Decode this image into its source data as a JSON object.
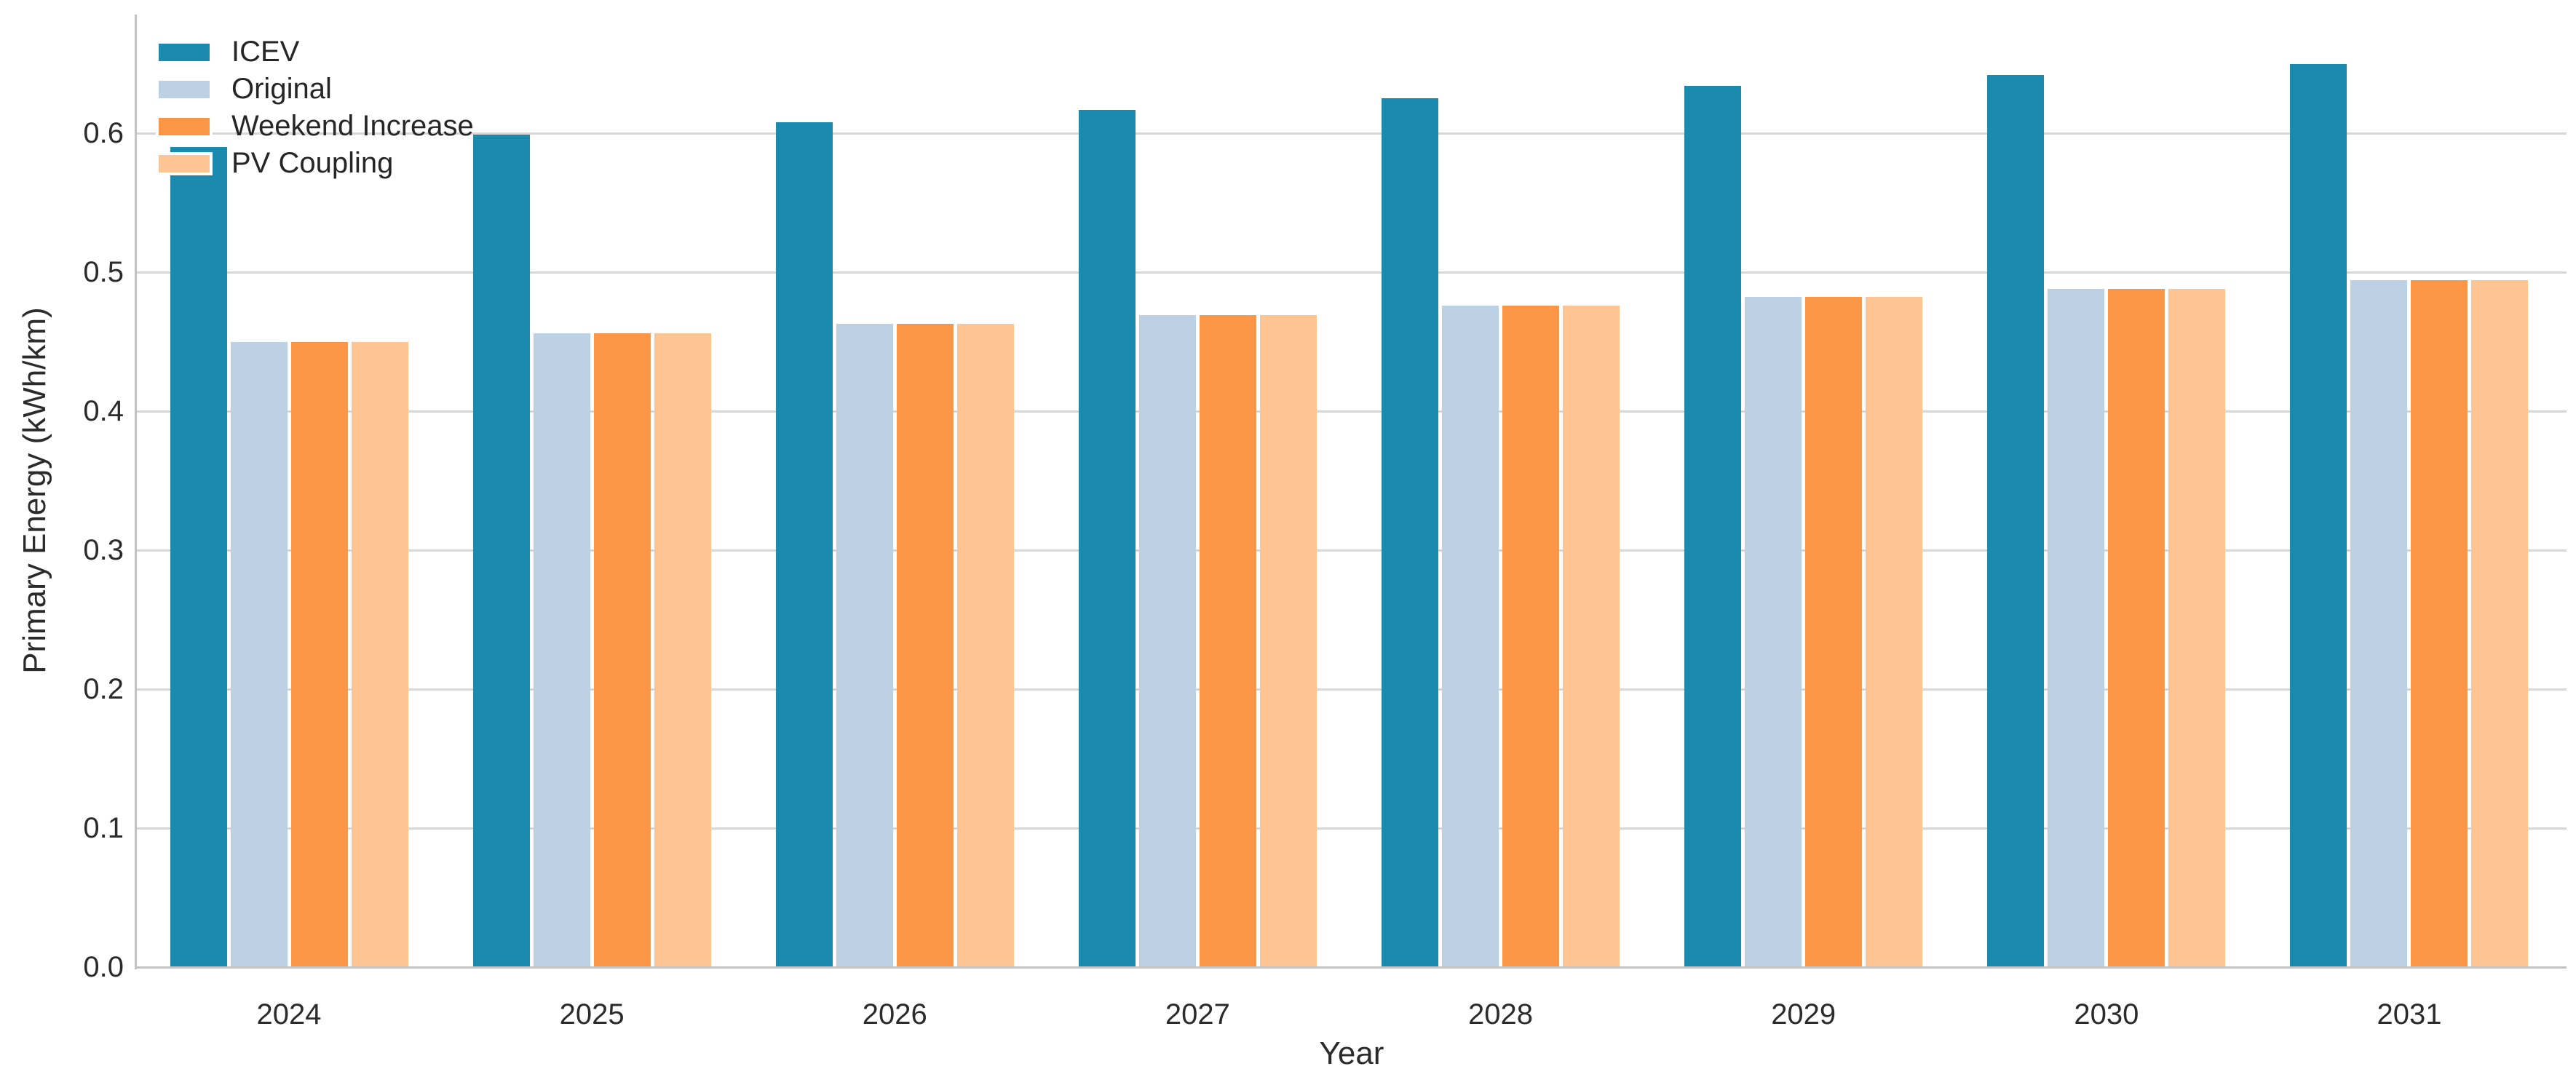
{
  "chart_data": {
    "type": "bar",
    "title": "",
    "categories": [
      "2024",
      "2025",
      "2026",
      "2027",
      "2028",
      "2029",
      "2030",
      "2031"
    ],
    "series": [
      {
        "name": "ICEV",
        "color": "#1a8aae",
        "values": [
          0.59,
          0.599,
          0.608,
          0.617,
          0.625,
          0.634,
          0.642,
          0.65
        ]
      },
      {
        "name": "Original",
        "color": "#bdd1e5",
        "values": [
          0.45,
          0.456,
          0.463,
          0.469,
          0.476,
          0.482,
          0.488,
          0.494
        ]
      },
      {
        "name": "Weekend Increase",
        "color": "#fa9646",
        "values": [
          0.45,
          0.456,
          0.463,
          0.469,
          0.476,
          0.482,
          0.488,
          0.494
        ]
      },
      {
        "name": "PV Coupling",
        "color": "#fdc594",
        "values": [
          0.45,
          0.456,
          0.463,
          0.469,
          0.476,
          0.482,
          0.488,
          0.494
        ]
      }
    ],
    "xlabel": "Year",
    "ylabel": "Primary Energy (kWh/km)",
    "ylim": [
      0.0,
      0.685
    ],
    "yticks": [
      "0.0",
      "0.1",
      "0.2",
      "0.3",
      "0.4",
      "0.5",
      "0.6"
    ],
    "grid": true,
    "legend_position": "upper left"
  },
  "style": {
    "background": "#ffffff",
    "gridline_color": "#d7d7d7",
    "spine_color": "#c3c3c3",
    "text_color": "#2b2b2b"
  }
}
